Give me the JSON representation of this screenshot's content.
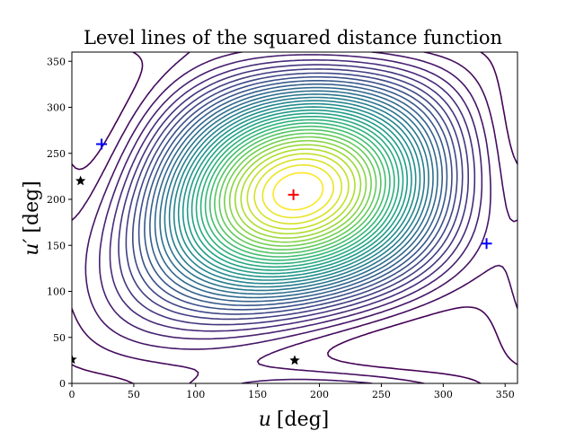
{
  "chart_data": {
    "type": "contour",
    "title": "Level lines of the squared distance function",
    "xlabel_var": "u",
    "xlabel_unit": "[deg]",
    "ylabel_var": "u′",
    "ylabel_unit": "[deg]",
    "xlim": [
      0,
      360
    ],
    "ylim": [
      0,
      360
    ],
    "xticks": [
      0,
      50,
      100,
      150,
      200,
      250,
      300,
      350
    ],
    "yticks": [
      0,
      50,
      100,
      150,
      200,
      250,
      300,
      350
    ],
    "colormap": "viridis",
    "grid": false,
    "markers": [
      {
        "kind": "plus",
        "color": "#ff0000",
        "x": 179,
        "y": 205
      },
      {
        "kind": "plus",
        "color": "#0000ff",
        "x": 24,
        "y": 260
      },
      {
        "kind": "plus",
        "color": "#0000ff",
        "x": 335,
        "y": 152
      },
      {
        "kind": "star",
        "color": "#000000",
        "x": 7,
        "y": 220
      },
      {
        "kind": "star",
        "color": "#000000",
        "x": 180,
        "y": 25
      },
      {
        "kind": "star",
        "color": "#000000",
        "x": 0,
        "y": 26
      }
    ]
  }
}
